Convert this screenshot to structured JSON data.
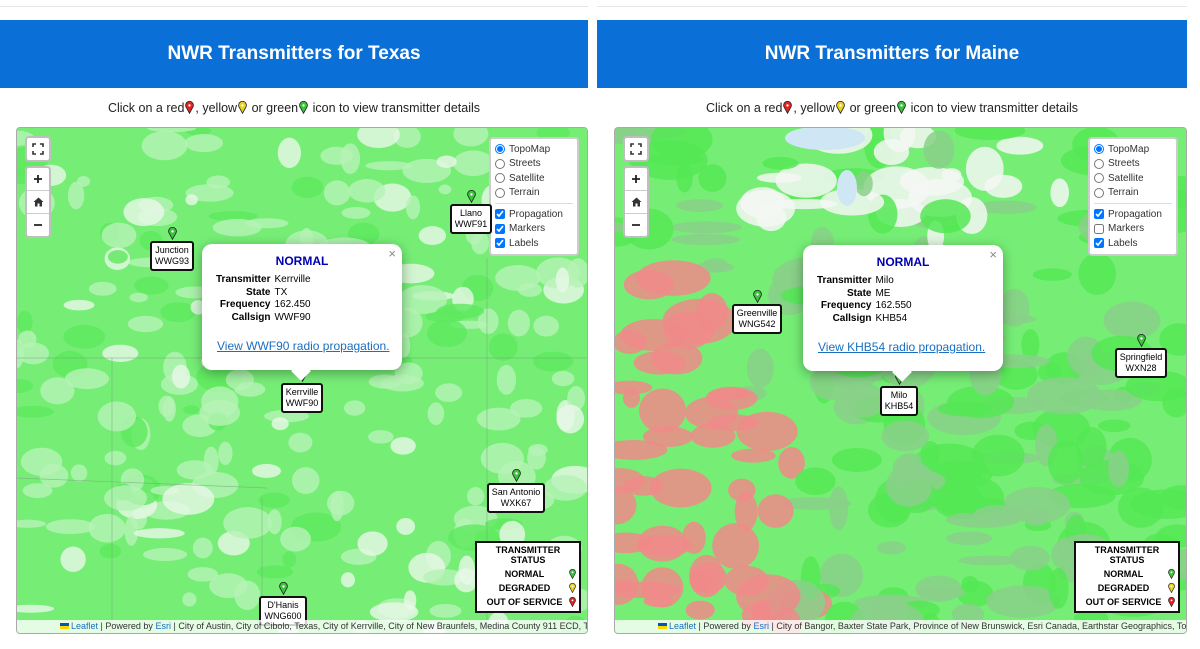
{
  "panels": [
    {
      "title": "NWR Transmitters for Texas",
      "instruction": [
        "Click on a red",
        ", yellow",
        " or green",
        " icon to view transmitter details"
      ],
      "layers": {
        "base": [
          {
            "label": "TopoMap",
            "checked": true
          },
          {
            "label": "Streets",
            "checked": false
          },
          {
            "label": "Satellite",
            "checked": false
          },
          {
            "label": "Terrain",
            "checked": false
          }
        ],
        "overlays": [
          {
            "label": "Propagation",
            "checked": true
          },
          {
            "label": "Markers",
            "checked": true
          },
          {
            "label": "Labels",
            "checked": true
          }
        ]
      },
      "popup": {
        "status": "NORMAL",
        "close": "×",
        "fields": [
          {
            "label": "Transmitter",
            "value": "Kerrville"
          },
          {
            "label": "State",
            "value": "TX"
          },
          {
            "label": "Frequency",
            "value": "162.450"
          },
          {
            "label": "Callsign",
            "value": "WWF90"
          }
        ],
        "link": "View WWF90 radio propagation."
      },
      "markers": [
        {
          "name": "Junction",
          "callsign": "WWG93",
          "status": "NORMAL"
        },
        {
          "name": "Llano",
          "callsign": "WWF91",
          "status": "NORMAL"
        },
        {
          "name": "Kerrville",
          "callsign": "WWF90",
          "status": "NORMAL"
        },
        {
          "name": "San Antonio",
          "callsign": "WXK67",
          "status": "NORMAL"
        },
        {
          "name": "D'Hanis",
          "callsign": "WNG600",
          "status": "NORMAL"
        }
      ],
      "legend": {
        "title": "TRANSMITTER STATUS",
        "items": [
          {
            "label": "NORMAL",
            "color": "#3cc43c"
          },
          {
            "label": "DEGRADED",
            "color": "#e8d21a"
          },
          {
            "label": "OUT OF SERVICE",
            "color": "#e02424"
          }
        ]
      },
      "attribution": {
        "leaflet": "Leaflet",
        "separator": "|",
        "powered_by": "Powered by",
        "esri": "Esri",
        "sources": "City of Austin, City of Cibolo, Texas, City of Kerrville, City of New Braunfels, Medina County 911 ECD, T..."
      },
      "region": "texas"
    },
    {
      "title": "NWR Transmitters for Maine",
      "instruction": [
        "Click on a red",
        ", yellow",
        " or green",
        " icon to view transmitter details"
      ],
      "layers": {
        "base": [
          {
            "label": "TopoMap",
            "checked": true
          },
          {
            "label": "Streets",
            "checked": false
          },
          {
            "label": "Satellite",
            "checked": false
          },
          {
            "label": "Terrain",
            "checked": false
          }
        ],
        "overlays": [
          {
            "label": "Propagation",
            "checked": true
          },
          {
            "label": "Markers",
            "checked": false
          },
          {
            "label": "Labels",
            "checked": true
          }
        ]
      },
      "popup": {
        "status": "NORMAL",
        "close": "×",
        "fields": [
          {
            "label": "Transmitter",
            "value": "Milo"
          },
          {
            "label": "State",
            "value": "ME"
          },
          {
            "label": "Frequency",
            "value": "162.550"
          },
          {
            "label": "Callsign",
            "value": "KHB54"
          }
        ],
        "link": "View KHB54 radio propagation."
      },
      "markers": [
        {
          "name": "Greenville",
          "callsign": "WNG542",
          "status": "NORMAL"
        },
        {
          "name": "Milo",
          "callsign": "KHB54",
          "status": "NORMAL"
        },
        {
          "name": "Springfield",
          "callsign": "WXN28",
          "status": "NORMAL"
        }
      ],
      "legend": {
        "title": "TRANSMITTER STATUS",
        "items": [
          {
            "label": "NORMAL",
            "color": "#3cc43c"
          },
          {
            "label": "DEGRADED",
            "color": "#e8d21a"
          },
          {
            "label": "OUT OF SERVICE",
            "color": "#e02424"
          }
        ]
      },
      "attribution": {
        "leaflet": "Leaflet",
        "separator": "|",
        "powered_by": "Powered by",
        "esri": "Esri",
        "sources": "City of Bangor, Baxter State Park, Province of New Brunswick, Esri Canada, Earthstar Geographics, To..."
      },
      "region": "maine"
    }
  ]
}
